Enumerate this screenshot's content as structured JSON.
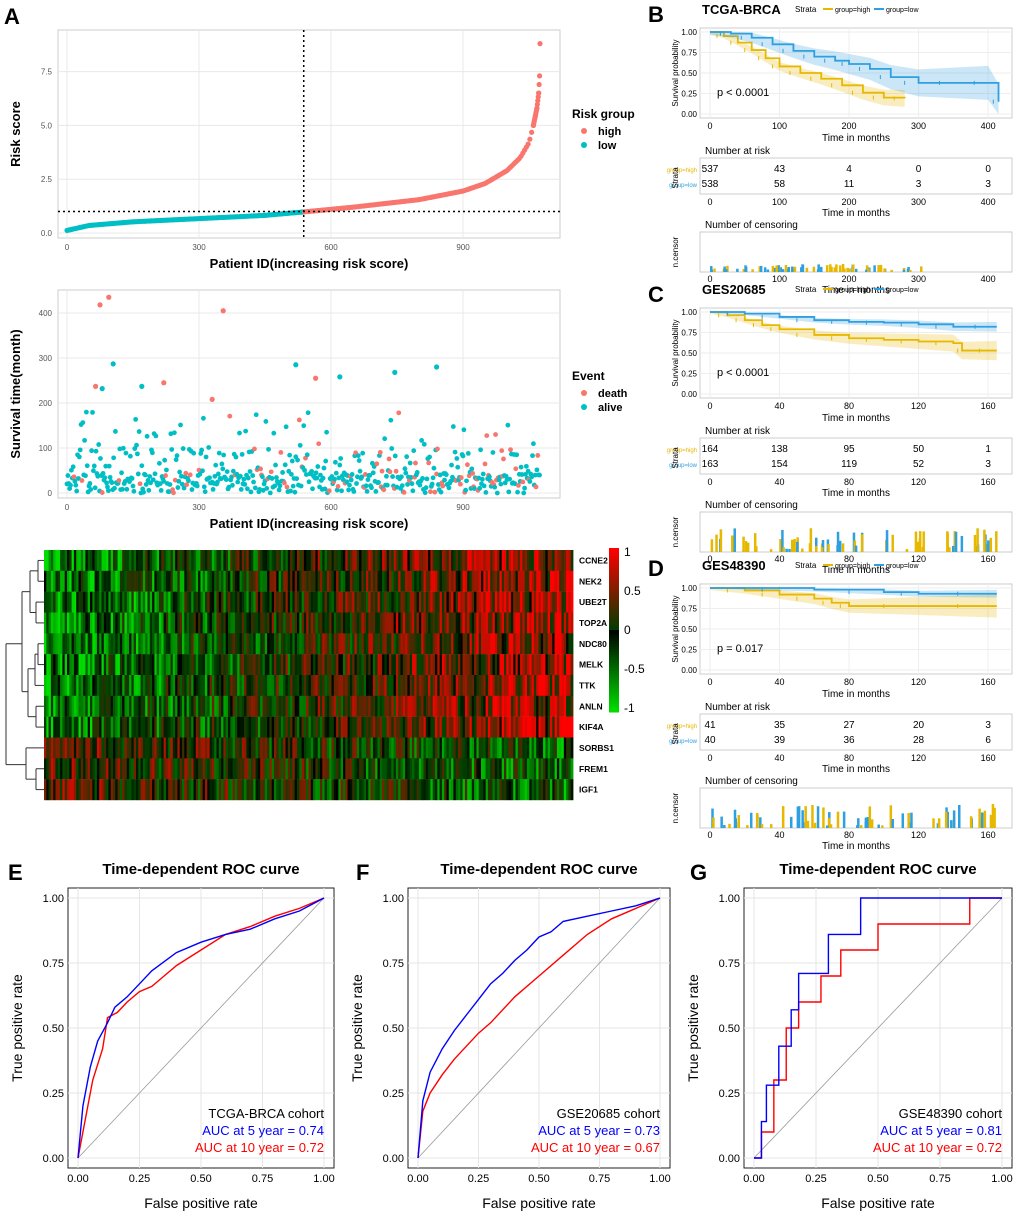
{
  "panels": {
    "A": "A",
    "B": "B",
    "C": "C",
    "D": "D",
    "E": "E",
    "F": "F",
    "G": "G"
  },
  "colors": {
    "high": "#f8766d",
    "low": "#00bfc4",
    "km_high": "#e7b800",
    "km_low": "#2e9fdf",
    "roc_5": "#0000ff",
    "roc_10": "#ff0000",
    "heat_pos": "#ff0000",
    "heat_neg": "#00ff00",
    "heat_mid": "#000000"
  },
  "chart_data": [
    {
      "id": "A1",
      "type": "scatter",
      "xlabel": "Patient ID(increasing risk score)",
      "ylabel": "Risk score",
      "xticks": [
        0,
        300,
        600,
        900
      ],
      "yticks": [
        "0.0",
        "2.5",
        "5.0",
        "7.5"
      ],
      "xlim": [
        0,
        1100
      ],
      "ylim": [
        0,
        9.2
      ],
      "cutoff_x": 538,
      "cutoff_y": 1.0,
      "n_low": 538,
      "n_high": 537,
      "legend": {
        "title": "Risk group",
        "items": [
          "high",
          "low"
        ]
      },
      "curve": [
        [
          0,
          0.12
        ],
        [
          50,
          0.35
        ],
        [
          150,
          0.52
        ],
        [
          300,
          0.67
        ],
        [
          450,
          0.82
        ],
        [
          538,
          0.98
        ],
        [
          650,
          1.2
        ],
        [
          800,
          1.55
        ],
        [
          900,
          1.95
        ],
        [
          950,
          2.3
        ],
        [
          1000,
          2.9
        ],
        [
          1030,
          3.5
        ],
        [
          1050,
          4.2
        ],
        [
          1060,
          5.0
        ],
        [
          1068,
          5.8
        ],
        [
          1072,
          6.5
        ],
        [
          1074,
          7.3
        ],
        [
          1075,
          8.8
        ]
      ]
    },
    {
      "id": "A2",
      "type": "scatter",
      "xlabel": "Patient ID(increasing risk score)",
      "ylabel": "Survival time(month)",
      "xticks": [
        0,
        300,
        600,
        900
      ],
      "yticks": [
        "0",
        "100",
        "200",
        "300",
        "400"
      ],
      "xlim": [
        0,
        1100
      ],
      "ylim": [
        0,
        440
      ],
      "legend": {
        "title": "Event",
        "items": [
          "death",
          "alive"
        ]
      },
      "highlight_points": [
        {
          "x": 75,
          "y": 418,
          "e": "death"
        },
        {
          "x": 95,
          "y": 435,
          "e": "death"
        },
        {
          "x": 355,
          "y": 405,
          "e": "death"
        },
        {
          "x": 105,
          "y": 287,
          "e": "alive"
        },
        {
          "x": 745,
          "y": 268,
          "e": "alive"
        },
        {
          "x": 840,
          "y": 280,
          "e": "alive"
        },
        {
          "x": 565,
          "y": 255,
          "e": "death"
        },
        {
          "x": 520,
          "y": 285,
          "e": "alive"
        },
        {
          "x": 620,
          "y": 258,
          "e": "alive"
        },
        {
          "x": 65,
          "y": 237,
          "e": "death"
        },
        {
          "x": 80,
          "y": 232,
          "e": "alive"
        },
        {
          "x": 170,
          "y": 237,
          "e": "alive"
        },
        {
          "x": 220,
          "y": 245,
          "e": "death"
        },
        {
          "x": 330,
          "y": 208,
          "e": "death"
        }
      ]
    },
    {
      "id": "A3",
      "type": "heatmap",
      "genes": [
        "CCNE2",
        "NEK2",
        "UBE2T",
        "TOP2A",
        "NDC80",
        "MELK",
        "TTK",
        "ANLN",
        "KIF4A",
        "SORBS1",
        "FREM1",
        "IGF1"
      ],
      "colorbar_ticks": [
        "1",
        "0.5",
        "0",
        "-0.5",
        "-1"
      ]
    },
    {
      "id": "B",
      "type": "line",
      "title": "TCGA-BRCA",
      "strata_label": "Strata",
      "strata": [
        "group=high",
        "group=low"
      ],
      "xlabel": "Time in months",
      "ylabel": "Survival probability",
      "xticks": [
        "0",
        "100",
        "200",
        "300",
        "400"
      ],
      "yticks": [
        "0.00",
        "0.25",
        "0.50",
        "0.75",
        "1.00"
      ],
      "xlim": [
        0,
        420
      ],
      "pval": "p < 0.0001",
      "risk_title": "Number at risk",
      "risk_ylabel": "Strata",
      "risk": [
        [
          "537",
          "43",
          "4",
          "0",
          "0"
        ],
        [
          "538",
          "58",
          "11",
          "3",
          "3"
        ]
      ],
      "censor_title": "Number of censoring",
      "censor_ylabel": "n.censor",
      "series": [
        {
          "name": "group=high",
          "x": [
            0,
            20,
            40,
            60,
            80,
            100,
            130,
            160,
            190,
            220,
            250,
            280
          ],
          "y": [
            1.0,
            0.95,
            0.87,
            0.78,
            0.68,
            0.58,
            0.5,
            0.43,
            0.35,
            0.26,
            0.2,
            0.19
          ]
        },
        {
          "name": "group=low",
          "x": [
            0,
            30,
            60,
            90,
            120,
            150,
            180,
            200,
            230,
            260,
            300,
            360,
            400,
            415
          ],
          "y": [
            1.0,
            0.98,
            0.93,
            0.85,
            0.77,
            0.7,
            0.65,
            0.61,
            0.55,
            0.45,
            0.38,
            0.38,
            0.38,
            0.15
          ]
        }
      ]
    },
    {
      "id": "C",
      "type": "line",
      "title": "GES20685",
      "strata_label": "Strata",
      "strata": [
        "group=high",
        "group=low"
      ],
      "xlabel": "Time in months",
      "ylabel": "Survival probability",
      "xticks": [
        "0",
        "40",
        "80",
        "120",
        "160"
      ],
      "yticks": [
        "0.00",
        "0.25",
        "0.50",
        "0.75",
        "1.00"
      ],
      "xlim": [
        0,
        168
      ],
      "pval": "p < 0.0001",
      "risk_title": "Number at risk",
      "risk_ylabel": "Strata",
      "risk": [
        [
          "164",
          "138",
          "95",
          "50",
          "1"
        ],
        [
          "163",
          "154",
          "119",
          "52",
          "3"
        ]
      ],
      "censor_title": "Number of censoring",
      "censor_ylabel": "n.censor",
      "series": [
        {
          "name": "group=high",
          "x": [
            0,
            10,
            20,
            30,
            40,
            60,
            80,
            100,
            120,
            140,
            145,
            165
          ],
          "y": [
            1.0,
            0.96,
            0.9,
            0.84,
            0.79,
            0.72,
            0.68,
            0.66,
            0.64,
            0.62,
            0.53,
            0.53
          ]
        },
        {
          "name": "group=low",
          "x": [
            0,
            20,
            40,
            60,
            80,
            100,
            120,
            140,
            165
          ],
          "y": [
            1.0,
            0.98,
            0.94,
            0.9,
            0.88,
            0.87,
            0.85,
            0.82,
            0.82
          ]
        }
      ]
    },
    {
      "id": "D",
      "type": "line",
      "title": "GES48390",
      "strata_label": "Strata",
      "strata": [
        "group=high",
        "group=low"
      ],
      "xlabel": "Time in months",
      "ylabel": "Survival probability",
      "xticks": [
        "0",
        "40",
        "80",
        "120",
        "160"
      ],
      "yticks": [
        "0.00",
        "0.25",
        "0.50",
        "0.75",
        "1.00"
      ],
      "xlim": [
        0,
        168
      ],
      "pval": "p = 0.017",
      "risk_title": "Number at risk",
      "risk_ylabel": "Strata",
      "risk": [
        [
          "41",
          "35",
          "27",
          "20",
          "3"
        ],
        [
          "40",
          "39",
          "36",
          "28",
          "6"
        ]
      ],
      "censor_title": "Number of censoring",
      "censor_ylabel": "n.censor",
      "series": [
        {
          "name": "group=high",
          "x": [
            0,
            20,
            40,
            60,
            70,
            80,
            120,
            165
          ],
          "y": [
            1.0,
            0.97,
            0.92,
            0.87,
            0.82,
            0.78,
            0.78,
            0.78
          ]
        },
        {
          "name": "group=low",
          "x": [
            0,
            60,
            100,
            120,
            165
          ],
          "y": [
            1.0,
            0.98,
            0.95,
            0.93,
            0.93
          ]
        }
      ]
    },
    {
      "id": "E",
      "type": "line",
      "title": "Time-dependent ROC curve",
      "xlabel": "False positive rate",
      "ylabel": "True positive rate",
      "ticks": [
        "0.00",
        "0.25",
        "0.50",
        "0.75",
        "1.00"
      ],
      "cohort": "TCGA-BRCA cohort",
      "auc5": "AUC at 5 year = 0.74",
      "auc10": "AUC at 10 year = 0.72",
      "series": [
        {
          "name": "AUC at 5 year = 0.74",
          "x": [
            0,
            0.02,
            0.05,
            0.08,
            0.12,
            0.15,
            0.2,
            0.25,
            0.3,
            0.4,
            0.5,
            0.6,
            0.7,
            0.8,
            0.9,
            1.0
          ],
          "y": [
            0,
            0.2,
            0.35,
            0.45,
            0.52,
            0.58,
            0.62,
            0.67,
            0.72,
            0.79,
            0.83,
            0.86,
            0.88,
            0.92,
            0.95,
            1.0
          ]
        },
        {
          "name": "AUC at 10 year = 0.72",
          "x": [
            0,
            0.03,
            0.06,
            0.1,
            0.12,
            0.16,
            0.2,
            0.25,
            0.3,
            0.35,
            0.4,
            0.5,
            0.6,
            0.7,
            0.8,
            0.9,
            1.0
          ],
          "y": [
            0,
            0.15,
            0.3,
            0.42,
            0.54,
            0.56,
            0.6,
            0.64,
            0.66,
            0.7,
            0.74,
            0.8,
            0.86,
            0.89,
            0.93,
            0.96,
            1.0
          ]
        }
      ]
    },
    {
      "id": "F",
      "type": "line",
      "title": "Time-dependent ROC curve",
      "xlabel": "False positive rate",
      "ylabel": "True positive rate",
      "ticks": [
        "0.00",
        "0.25",
        "0.50",
        "0.75",
        "1.00"
      ],
      "cohort": "GSE20685 cohort",
      "auc5": "AUC at 5 year = 0.73",
      "auc10": "AUC at 10 year = 0.67",
      "series": [
        {
          "name": "AUC at 5 year = 0.73",
          "x": [
            0,
            0.02,
            0.05,
            0.1,
            0.15,
            0.2,
            0.25,
            0.3,
            0.35,
            0.4,
            0.45,
            0.5,
            0.55,
            0.6,
            0.7,
            0.8,
            0.9,
            1.0
          ],
          "y": [
            0,
            0.22,
            0.33,
            0.42,
            0.49,
            0.55,
            0.61,
            0.67,
            0.71,
            0.76,
            0.8,
            0.85,
            0.87,
            0.91,
            0.93,
            0.95,
            0.97,
            1.0
          ]
        },
        {
          "name": "AUC at 10 year = 0.67",
          "x": [
            0,
            0.02,
            0.05,
            0.1,
            0.15,
            0.2,
            0.25,
            0.3,
            0.35,
            0.4,
            0.5,
            0.6,
            0.7,
            0.8,
            0.9,
            1.0
          ],
          "y": [
            0,
            0.18,
            0.25,
            0.32,
            0.38,
            0.43,
            0.48,
            0.52,
            0.57,
            0.62,
            0.7,
            0.78,
            0.86,
            0.92,
            0.96,
            1.0
          ]
        }
      ]
    },
    {
      "id": "G",
      "type": "line",
      "title": "Time-dependent ROC curve",
      "xlabel": "False positive rate",
      "ylabel": "True positive rate",
      "ticks": [
        "0.00",
        "0.25",
        "0.50",
        "0.75",
        "1.00"
      ],
      "cohort": "GSE48390 cohort",
      "auc5": "AUC at 5 year = 0.81",
      "auc10": "AUC at 10 year = 0.72",
      "series": [
        {
          "name": "AUC at 5 year = 0.81",
          "x": [
            0,
            0.03,
            0.03,
            0.05,
            0.05,
            0.1,
            0.1,
            0.15,
            0.15,
            0.18,
            0.18,
            0.3,
            0.3,
            0.38,
            0.38,
            0.43,
            0.43,
            1.0
          ],
          "y": [
            0,
            0,
            0.14,
            0.14,
            0.28,
            0.28,
            0.43,
            0.43,
            0.57,
            0.57,
            0.71,
            0.71,
            0.86,
            0.86,
            0.86,
            0.86,
            1.0,
            1.0
          ]
        },
        {
          "name": "AUC at 10 year = 0.72",
          "x": [
            0,
            0.03,
            0.03,
            0.08,
            0.08,
            0.13,
            0.13,
            0.18,
            0.18,
            0.27,
            0.27,
            0.35,
            0.35,
            0.5,
            0.5,
            0.7,
            0.7,
            0.87,
            0.87,
            1.0
          ],
          "y": [
            0,
            0,
            0.1,
            0.1,
            0.3,
            0.3,
            0.5,
            0.5,
            0.6,
            0.6,
            0.7,
            0.7,
            0.8,
            0.8,
            0.9,
            0.9,
            0.9,
            0.9,
            1.0,
            1.0
          ]
        }
      ]
    }
  ]
}
